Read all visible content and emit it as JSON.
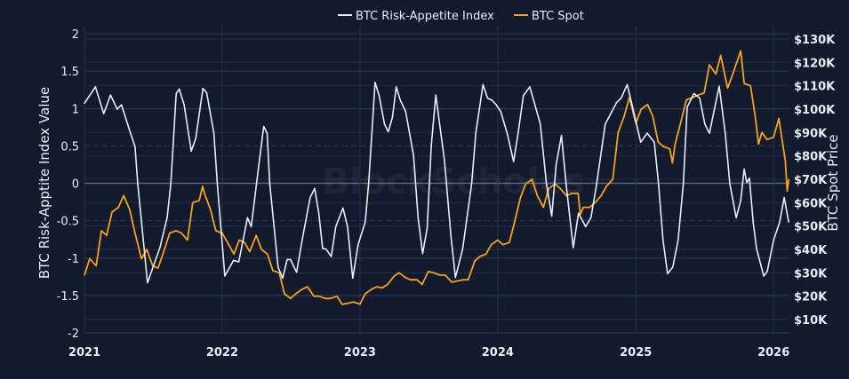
{
  "chart_data": {
    "type": "line",
    "title": "",
    "watermark": "BlockScholes",
    "legend": {
      "placement": "top-center",
      "entries": [
        "BTC Risk-Appetite Index",
        "BTC Spot"
      ]
    },
    "xlabel": "",
    "x_ticks": [
      "2021",
      "2022",
      "2023",
      "2024",
      "2025",
      "2026"
    ],
    "xlim": [
      "2021-01-01",
      "2026-02-12"
    ],
    "y_left": {
      "label": "BTC Risk-Apptite Index Value",
      "ylim": [
        -2,
        2
      ],
      "ticks": [
        "2",
        "1.5",
        "1",
        "0.5",
        "0",
        "-0.5",
        "-1",
        "-1.5",
        "-2"
      ],
      "tick_values": [
        2,
        1.5,
        1,
        0.5,
        0,
        -0.5,
        -1,
        -1.5,
        -2
      ],
      "dashed_reference_lines": [
        0.5,
        -0.5
      ]
    },
    "y_right": {
      "label": "BTC Spot Price",
      "ylim": [
        10,
        130
      ],
      "unit": "thousand USD",
      "ticks": [
        "$130K",
        "$120K",
        "$110K",
        "$100K",
        "$90K",
        "$80K",
        "$70K",
        "$60K",
        "$50K",
        "$40K",
        "$30K",
        "$20K",
        "$10K"
      ],
      "tick_values": [
        130,
        120,
        110,
        100,
        90,
        80,
        70,
        60,
        50,
        40,
        30,
        20,
        10
      ]
    },
    "grid": true,
    "colors": {
      "background": "#121a2e",
      "index": "#e8ecf4",
      "spot": "#f7a21b"
    },
    "series": [
      {
        "name": "BTC Risk-Appetite Index",
        "axis": "left",
        "points": [
          [
            "2021-01-01",
            1.07
          ],
          [
            "2021-01-30",
            1.29
          ],
          [
            "2021-02-21",
            0.93
          ],
          [
            "2021-03-11",
            1.18
          ],
          [
            "2021-03-29",
            0.99
          ],
          [
            "2021-04-09",
            1.05
          ],
          [
            "2021-05-03",
            0.67
          ],
          [
            "2021-05-15",
            0.49
          ],
          [
            "2021-05-22",
            0
          ],
          [
            "2021-06-17",
            -1.33
          ],
          [
            "2021-07-20",
            -0.86
          ],
          [
            "2021-08-08",
            -0.46
          ],
          [
            "2021-08-18",
            0
          ],
          [
            "2021-09-01",
            1.2
          ],
          [
            "2021-09-09",
            1.26
          ],
          [
            "2021-09-22",
            1.05
          ],
          [
            "2021-10-11",
            0.43
          ],
          [
            "2021-10-23",
            0.6
          ],
          [
            "2021-11-11",
            1.27
          ],
          [
            "2021-11-21",
            1.21
          ],
          [
            "2021-12-10",
            0.67
          ],
          [
            "2021-12-19",
            0
          ],
          [
            "2022-01-08",
            -1.24
          ],
          [
            "2022-01-31",
            -1.03
          ],
          [
            "2022-02-14",
            -1.05
          ],
          [
            "2022-03-09",
            -0.46
          ],
          [
            "2022-03-19",
            -0.58
          ],
          [
            "2022-04-02",
            0
          ],
          [
            "2022-04-21",
            0.76
          ],
          [
            "2022-04-30",
            0.67
          ],
          [
            "2022-05-07",
            0
          ],
          [
            "2022-05-29",
            -1.12
          ],
          [
            "2022-06-10",
            -1.27
          ],
          [
            "2022-06-22",
            -1.02
          ],
          [
            "2022-07-01",
            -1.02
          ],
          [
            "2022-07-17",
            -1.19
          ],
          [
            "2022-08-03",
            -0.7
          ],
          [
            "2022-08-22",
            -0.19
          ],
          [
            "2022-09-03",
            -0.07
          ],
          [
            "2022-09-14",
            -0.4
          ],
          [
            "2022-09-24",
            -0.87
          ],
          [
            "2022-10-03",
            -0.88
          ],
          [
            "2022-10-17",
            -0.98
          ],
          [
            "2022-10-29",
            -0.58
          ],
          [
            "2022-11-17",
            -0.33
          ],
          [
            "2022-11-29",
            -0.58
          ],
          [
            "2022-12-13",
            -1.27
          ],
          [
            "2022-12-27",
            -0.82
          ],
          [
            "2023-01-15",
            -0.52
          ],
          [
            "2023-01-24",
            0
          ],
          [
            "2023-02-10",
            1.35
          ],
          [
            "2023-02-21",
            1.17
          ],
          [
            "2023-03-07",
            0.79
          ],
          [
            "2023-03-17",
            0.69
          ],
          [
            "2023-03-28",
            0.88
          ],
          [
            "2023-04-07",
            1.29
          ],
          [
            "2023-04-18",
            1.11
          ],
          [
            "2023-05-02",
            0.96
          ],
          [
            "2023-05-23",
            0.37
          ],
          [
            "2023-06-04",
            -0.46
          ],
          [
            "2023-06-16",
            -0.94
          ],
          [
            "2023-06-28",
            -0.6
          ],
          [
            "2023-07-09",
            0.5
          ],
          [
            "2023-07-21",
            1.18
          ],
          [
            "2023-08-13",
            0.3
          ],
          [
            "2023-08-30",
            -0.7
          ],
          [
            "2023-09-11",
            -1.26
          ],
          [
            "2023-09-30",
            -0.88
          ],
          [
            "2023-10-24",
            0
          ],
          [
            "2023-11-04",
            0.67
          ],
          [
            "2023-11-23",
            1.32
          ],
          [
            "2023-12-05",
            1.14
          ],
          [
            "2023-12-17",
            1.11
          ],
          [
            "2023-12-28",
            1.05
          ],
          [
            "2024-01-09",
            0.96
          ],
          [
            "2024-01-26",
            0.67
          ],
          [
            "2024-02-12",
            0.29
          ],
          [
            "2024-02-24",
            0.67
          ],
          [
            "2024-03-09",
            1.17
          ],
          [
            "2024-03-26",
            1.29
          ],
          [
            "2024-04-07",
            1.08
          ],
          [
            "2024-04-23",
            0.79
          ],
          [
            "2024-05-09",
            0
          ],
          [
            "2024-05-23",
            -0.44
          ],
          [
            "2024-06-04",
            0.25
          ],
          [
            "2024-06-18",
            0.64
          ],
          [
            "2024-06-30",
            0
          ],
          [
            "2024-07-19",
            -0.86
          ],
          [
            "2024-08-02",
            -0.4
          ],
          [
            "2024-08-21",
            -0.58
          ],
          [
            "2024-09-04",
            -0.46
          ],
          [
            "2024-09-18",
            -0.05
          ],
          [
            "2024-10-12",
            0.79
          ],
          [
            "2024-11-11",
            1.08
          ],
          [
            "2024-11-23",
            1.14
          ],
          [
            "2024-12-09",
            1.32
          ],
          [
            "2024-12-26",
            0.96
          ],
          [
            "2025-01-14",
            0.55
          ],
          [
            "2025-01-31",
            0.67
          ],
          [
            "2025-02-19",
            0.55
          ],
          [
            "2025-03-02",
            0
          ],
          [
            "2025-03-14",
            -0.76
          ],
          [
            "2025-03-26",
            -1.21
          ],
          [
            "2025-04-09",
            -1.12
          ],
          [
            "2025-04-23",
            -0.76
          ],
          [
            "2025-05-07",
            0
          ],
          [
            "2025-05-17",
            1.02
          ],
          [
            "2025-06-04",
            1.2
          ],
          [
            "2025-06-19",
            1.14
          ],
          [
            "2025-07-03",
            0.79
          ],
          [
            "2025-07-15",
            0.67
          ],
          [
            "2025-08-10",
            1.3
          ],
          [
            "2025-08-26",
            0.67
          ],
          [
            "2025-09-07",
            0
          ],
          [
            "2025-09-24",
            -0.46
          ],
          [
            "2025-10-06",
            -0.23
          ],
          [
            "2025-10-15",
            0.19
          ],
          [
            "2025-10-22",
            0.01
          ],
          [
            "2025-10-29",
            0.07
          ],
          [
            "2025-11-08",
            -0.52
          ],
          [
            "2025-11-17",
            -0.88
          ],
          [
            "2025-12-06",
            -1.24
          ],
          [
            "2025-12-15",
            -1.18
          ],
          [
            "2026-01-01",
            -0.76
          ],
          [
            "2026-01-17",
            -0.52
          ],
          [
            "2026-01-29",
            -0.19
          ],
          [
            "2026-02-10",
            -0.52
          ]
        ]
      },
      {
        "name": "BTC Spot",
        "axis": "right",
        "points": [
          [
            "2021-01-01",
            29
          ],
          [
            "2021-01-15",
            36
          ],
          [
            "2021-02-01",
            33
          ],
          [
            "2021-02-15",
            48
          ],
          [
            "2021-03-01",
            46
          ],
          [
            "2021-03-15",
            56
          ],
          [
            "2021-04-01",
            58
          ],
          [
            "2021-04-15",
            63
          ],
          [
            "2021-05-01",
            57
          ],
          [
            "2021-05-15",
            47
          ],
          [
            "2021-06-01",
            36
          ],
          [
            "2021-06-15",
            40
          ],
          [
            "2021-07-01",
            33
          ],
          [
            "2021-07-15",
            32
          ],
          [
            "2021-08-01",
            40
          ],
          [
            "2021-08-15",
            47
          ],
          [
            "2021-09-01",
            48
          ],
          [
            "2021-09-15",
            47
          ],
          [
            "2021-10-01",
            44
          ],
          [
            "2021-10-15",
            60
          ],
          [
            "2021-11-01",
            61
          ],
          [
            "2021-11-10",
            67
          ],
          [
            "2021-11-15",
            64
          ],
          [
            "2021-12-01",
            57
          ],
          [
            "2021-12-15",
            48
          ],
          [
            "2022-01-01",
            47
          ],
          [
            "2022-01-15",
            43
          ],
          [
            "2022-02-01",
            38
          ],
          [
            "2022-02-15",
            44
          ],
          [
            "2022-03-01",
            43
          ],
          [
            "2022-03-15",
            39
          ],
          [
            "2022-04-01",
            46
          ],
          [
            "2022-04-15",
            40
          ],
          [
            "2022-05-01",
            38
          ],
          [
            "2022-05-15",
            31
          ],
          [
            "2022-06-01",
            30
          ],
          [
            "2022-06-15",
            21
          ],
          [
            "2022-07-01",
            19
          ],
          [
            "2022-07-15",
            21
          ],
          [
            "2022-08-01",
            23
          ],
          [
            "2022-08-15",
            24
          ],
          [
            "2022-09-01",
            20
          ],
          [
            "2022-09-15",
            20
          ],
          [
            "2022-10-01",
            19
          ],
          [
            "2022-10-15",
            19
          ],
          [
            "2022-11-01",
            20
          ],
          [
            "2022-11-15",
            16.5
          ],
          [
            "2022-12-01",
            17
          ],
          [
            "2022-12-15",
            17.5
          ],
          [
            "2023-01-01",
            16.6
          ],
          [
            "2023-01-15",
            21
          ],
          [
            "2023-02-01",
            23
          ],
          [
            "2023-02-15",
            24
          ],
          [
            "2023-03-01",
            23.5
          ],
          [
            "2023-03-15",
            25
          ],
          [
            "2023-04-01",
            28.5
          ],
          [
            "2023-04-15",
            30
          ],
          [
            "2023-05-01",
            28
          ],
          [
            "2023-05-15",
            27
          ],
          [
            "2023-06-01",
            27
          ],
          [
            "2023-06-15",
            25
          ],
          [
            "2023-07-01",
            30.5
          ],
          [
            "2023-07-15",
            30
          ],
          [
            "2023-08-01",
            29
          ],
          [
            "2023-08-15",
            29
          ],
          [
            "2023-09-01",
            26
          ],
          [
            "2023-09-15",
            26.5
          ],
          [
            "2023-10-01",
            27
          ],
          [
            "2023-10-15",
            27
          ],
          [
            "2023-11-01",
            35
          ],
          [
            "2023-11-15",
            37
          ],
          [
            "2023-12-01",
            38
          ],
          [
            "2023-12-15",
            42
          ],
          [
            "2024-01-01",
            44
          ],
          [
            "2024-01-15",
            42
          ],
          [
            "2024-02-01",
            43
          ],
          [
            "2024-02-15",
            52
          ],
          [
            "2024-03-01",
            62
          ],
          [
            "2024-03-15",
            68
          ],
          [
            "2024-04-01",
            70
          ],
          [
            "2024-04-15",
            63
          ],
          [
            "2024-05-01",
            58
          ],
          [
            "2024-05-15",
            66
          ],
          [
            "2024-06-01",
            68
          ],
          [
            "2024-06-15",
            66
          ],
          [
            "2024-07-01",
            63
          ],
          [
            "2024-07-15",
            64
          ],
          [
            "2024-08-01",
            64
          ],
          [
            "2024-08-07",
            55
          ],
          [
            "2024-08-15",
            58
          ],
          [
            "2024-09-01",
            58
          ],
          [
            "2024-09-15",
            60
          ],
          [
            "2024-10-01",
            63
          ],
          [
            "2024-10-15",
            67
          ],
          [
            "2024-11-01",
            70
          ],
          [
            "2024-11-15",
            90
          ],
          [
            "2024-12-01",
            97
          ],
          [
            "2024-12-15",
            105
          ],
          [
            "2025-01-01",
            94
          ],
          [
            "2025-01-15",
            100
          ],
          [
            "2025-02-01",
            102
          ],
          [
            "2025-02-15",
            97
          ],
          [
            "2025-03-01",
            86
          ],
          [
            "2025-03-15",
            84
          ],
          [
            "2025-04-01",
            83
          ],
          [
            "2025-04-08",
            77
          ],
          [
            "2025-04-15",
            85
          ],
          [
            "2025-05-01",
            95
          ],
          [
            "2025-05-15",
            104
          ],
          [
            "2025-06-01",
            105
          ],
          [
            "2025-06-15",
            106
          ],
          [
            "2025-07-01",
            107
          ],
          [
            "2025-07-15",
            119
          ],
          [
            "2025-08-01",
            115
          ],
          [
            "2025-08-14",
            123
          ],
          [
            "2025-09-01",
            109
          ],
          [
            "2025-09-15",
            115
          ],
          [
            "2025-10-06",
            125
          ],
          [
            "2025-10-15",
            111
          ],
          [
            "2025-11-01",
            110
          ],
          [
            "2025-11-15",
            95
          ],
          [
            "2025-11-22",
            85
          ],
          [
            "2025-12-01",
            90
          ],
          [
            "2025-12-15",
            87
          ],
          [
            "2026-01-01",
            88
          ],
          [
            "2026-01-15",
            96
          ],
          [
            "2026-02-01",
            78
          ],
          [
            "2026-02-06",
            65
          ],
          [
            "2026-02-10",
            70
          ]
        ]
      }
    ]
  }
}
